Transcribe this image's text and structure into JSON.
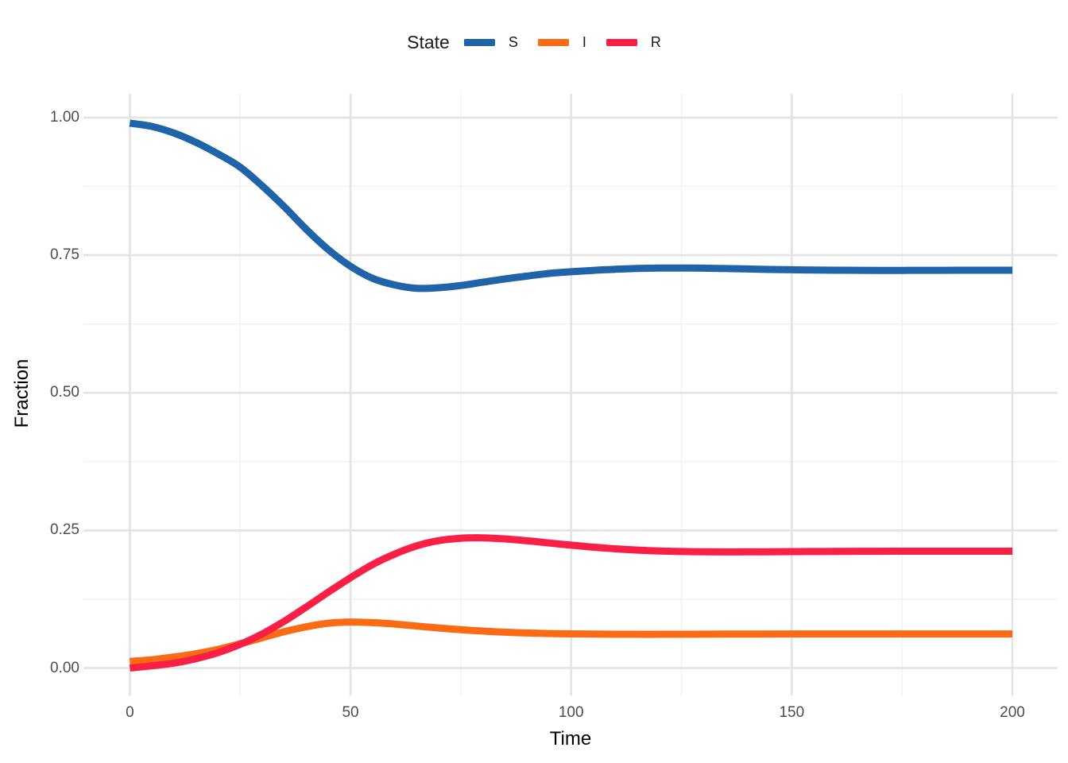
{
  "chart_data": {
    "type": "line",
    "title": "",
    "xlabel": "Time",
    "ylabel": "Fraction",
    "xlim": [
      0,
      200
    ],
    "ylim": [
      0,
      1.0
    ],
    "grid": "major+minor",
    "legend_position": "top",
    "legend": {
      "title": "State"
    },
    "x_ticks": [
      0,
      50,
      100,
      150,
      200
    ],
    "x_tick_labels": [
      "0",
      "50",
      "100",
      "150",
      "200"
    ],
    "x_minor_ticks": [
      25,
      75,
      125,
      175
    ],
    "y_ticks": [
      0,
      0.25,
      0.5,
      0.75,
      1.0
    ],
    "y_tick_labels": [
      "0.00",
      "0.25",
      "0.50",
      "0.75",
      "1.00"
    ],
    "y_minor_ticks": [
      0.125,
      0.375,
      0.625,
      0.875
    ],
    "x": [
      0,
      5,
      10,
      15,
      20,
      25,
      30,
      35,
      40,
      45,
      50,
      55,
      60,
      65,
      70,
      75,
      80,
      85,
      90,
      95,
      100,
      105,
      110,
      115,
      120,
      125,
      130,
      135,
      140,
      145,
      150,
      155,
      160,
      165,
      170,
      175,
      180,
      185,
      190,
      195,
      200
    ],
    "series": [
      {
        "name": "S",
        "color": "#1F64A9",
        "values": [
          0.99,
          0.984,
          0.972,
          0.955,
          0.934,
          0.91,
          0.876,
          0.838,
          0.797,
          0.76,
          0.73,
          0.708,
          0.696,
          0.69,
          0.691,
          0.695,
          0.701,
          0.707,
          0.712,
          0.717,
          0.72,
          0.7225,
          0.7245,
          0.726,
          0.7267,
          0.7268,
          0.7265,
          0.7258,
          0.725,
          0.7242,
          0.7236,
          0.7231,
          0.7228,
          0.7226,
          0.7225,
          0.7225,
          0.7226,
          0.7226,
          0.7227,
          0.7227,
          0.7227
        ]
      },
      {
        "name": "I",
        "color": "#FB6B13",
        "values": [
          0.012,
          0.015,
          0.02,
          0.026,
          0.034,
          0.044,
          0.055,
          0.066,
          0.075,
          0.0815,
          0.0836,
          0.0825,
          0.0798,
          0.0763,
          0.0728,
          0.0697,
          0.0671,
          0.0651,
          0.0637,
          0.0627,
          0.0621,
          0.0617,
          0.0614,
          0.0613,
          0.0613,
          0.0614,
          0.0615,
          0.0616,
          0.0617,
          0.0618,
          0.0619,
          0.062,
          0.062,
          0.062,
          0.062,
          0.062,
          0.062,
          0.062,
          0.062,
          0.062,
          0.062
        ]
      },
      {
        "name": "R",
        "color": "#F91F45",
        "values": [
          0.0,
          0.004,
          0.009,
          0.017,
          0.028,
          0.043,
          0.062,
          0.085,
          0.111,
          0.138,
          0.164,
          0.188,
          0.207,
          0.222,
          0.2315,
          0.2358,
          0.2365,
          0.2346,
          0.2312,
          0.2272,
          0.2232,
          0.2196,
          0.2166,
          0.2143,
          0.2127,
          0.2117,
          0.2112,
          0.211,
          0.2111,
          0.2113,
          0.2115,
          0.2117,
          0.2119,
          0.2121,
          0.2122,
          0.2123,
          0.2123,
          0.2123,
          0.2123,
          0.2123,
          0.2123
        ]
      }
    ],
    "style": {
      "grid_major_color": "#E4E4E4",
      "grid_minor_color": "#F1F1F1",
      "tick_text_color": "#4D4D4D",
      "axis_title_color": "#000000"
    }
  }
}
